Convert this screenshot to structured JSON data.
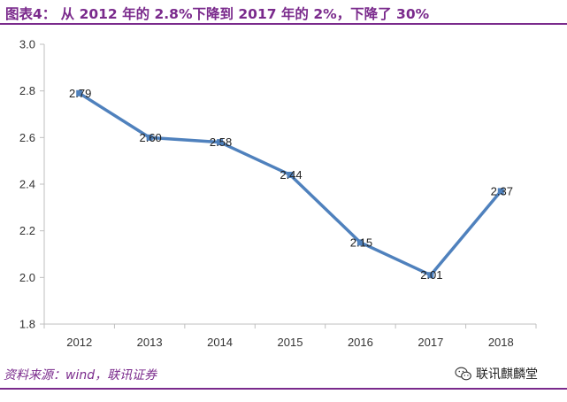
{
  "header": {
    "title": "图表4：  从 2012 年的 2.8%下降到 2017 年的 2%，下降了 30%"
  },
  "footer": {
    "source": "资料来源：wind，联讯证券",
    "watermark": "联讯麒麟堂"
  },
  "colors": {
    "accent": "#7a2a8c",
    "series": "#4f81bd",
    "axis": "#bfbfbf"
  },
  "chart_data": {
    "type": "line",
    "title": "",
    "xlabel": "",
    "ylabel": "",
    "categories": [
      "2012",
      "2013",
      "2014",
      "2015",
      "2016",
      "2017",
      "2018"
    ],
    "series": [
      {
        "values": [
          2.79,
          2.6,
          2.58,
          2.44,
          2.15,
          2.01,
          2.37
        ],
        "labels": [
          "2.79",
          "2.60",
          "2.58",
          "2.44",
          "2.15",
          "2.01",
          "2.37"
        ]
      }
    ],
    "ylim": [
      1.8,
      3.0
    ],
    "yticks": [
      "1.8",
      "2.0",
      "2.2",
      "2.4",
      "2.6",
      "2.8",
      "3.0"
    ],
    "grid": false,
    "legend": "none",
    "data_labels": true,
    "markers": "square"
  }
}
